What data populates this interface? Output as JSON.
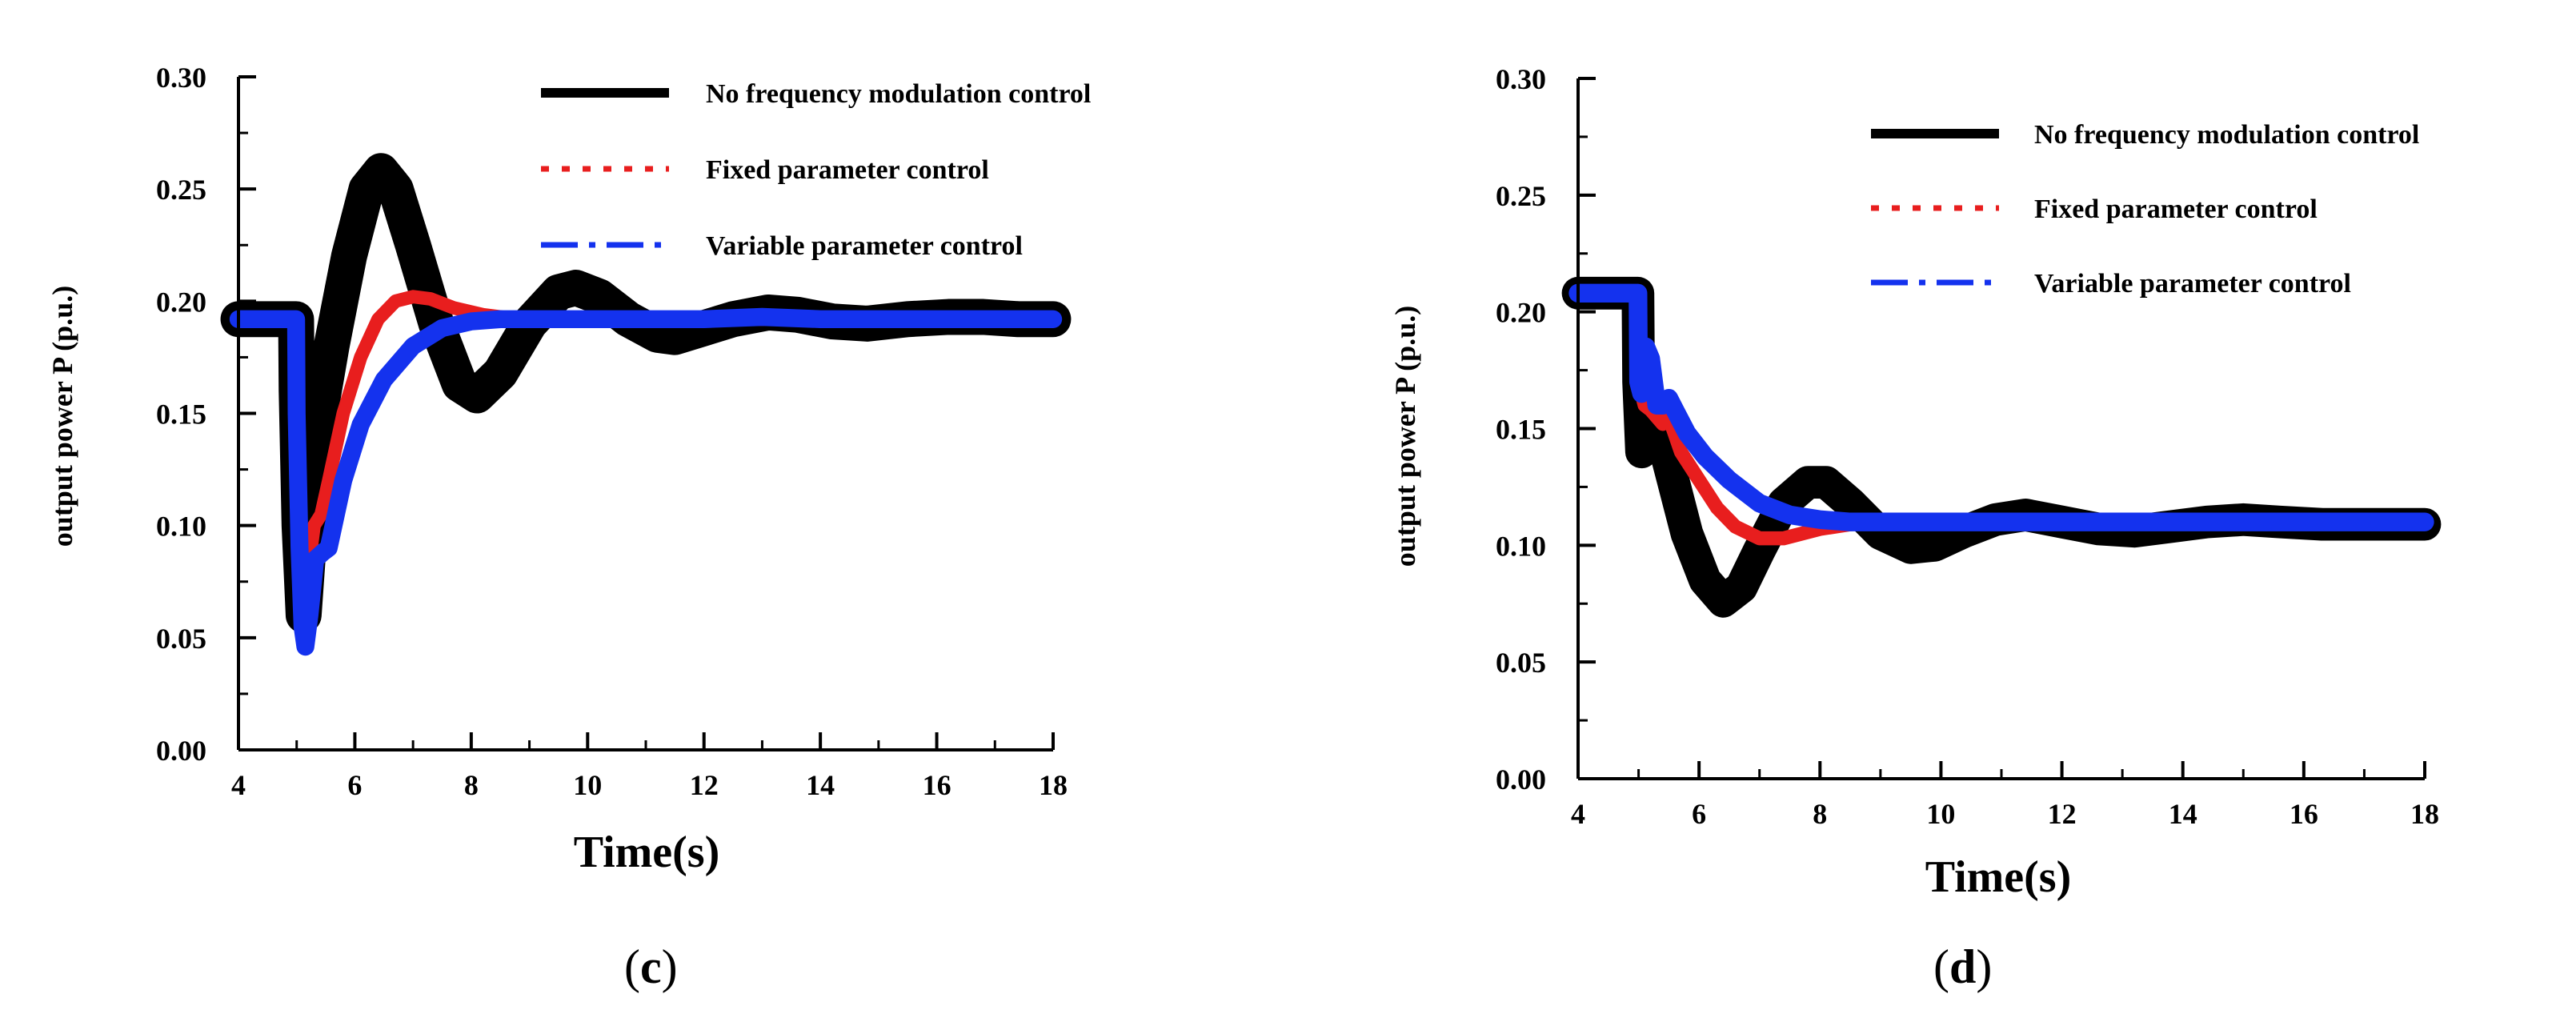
{
  "chart_data": [
    {
      "panel": "c",
      "type": "line",
      "caption_open": "(",
      "caption_letter": "c",
      "caption_close": ")",
      "xlabel": "Time(s)",
      "ylabel": "output power  P (p.u.)",
      "xlim": [
        4,
        18
      ],
      "ylim": [
        0,
        0.3
      ],
      "x_ticks": [
        "4",
        "6",
        "8",
        "10",
        "12",
        "14",
        "16",
        "18"
      ],
      "y_ticks": [
        "0.00",
        "0.05",
        "0.10",
        "0.15",
        "0.20",
        "0.25",
        "0.30"
      ],
      "legend_position": "top-right",
      "series": [
        {
          "name": "No frequency modulation control",
          "color": "#000000",
          "style": "solid",
          "x": [
            4.0,
            4.99,
            5.0,
            5.05,
            5.12,
            5.2,
            5.3,
            5.4,
            5.6,
            5.9,
            6.2,
            6.45,
            6.7,
            7.0,
            7.4,
            7.8,
            8.1,
            8.5,
            9.0,
            9.5,
            9.8,
            10.2,
            10.7,
            11.2,
            11.5,
            12.0,
            12.5,
            13.1,
            13.6,
            14.2,
            14.8,
            15.5,
            16.2,
            16.8,
            17.4,
            18.0
          ],
          "y": [
            0.192,
            0.192,
            0.16,
            0.1,
            0.06,
            0.09,
            0.13,
            0.15,
            0.18,
            0.22,
            0.25,
            0.258,
            0.25,
            0.225,
            0.19,
            0.163,
            0.158,
            0.168,
            0.19,
            0.204,
            0.206,
            0.202,
            0.192,
            0.185,
            0.184,
            0.188,
            0.192,
            0.195,
            0.194,
            0.191,
            0.19,
            0.192,
            0.193,
            0.193,
            0.192,
            0.192
          ],
          "band": 0.008
        },
        {
          "name": "Fixed parameter control",
          "color": "#e81e1e",
          "style": "dotted",
          "x": [
            4.0,
            4.99,
            5.0,
            5.05,
            5.12,
            5.2,
            5.3,
            5.42,
            5.55,
            5.8,
            6.1,
            6.4,
            6.7,
            7.0,
            7.3,
            7.7,
            8.2,
            8.8,
            9.5,
            10.5,
            12.0,
            14.0,
            16.0,
            18.0
          ],
          "y": [
            0.192,
            0.192,
            0.16,
            0.1,
            0.06,
            0.08,
            0.1,
            0.105,
            0.12,
            0.15,
            0.175,
            0.192,
            0.2,
            0.202,
            0.201,
            0.197,
            0.194,
            0.192,
            0.192,
            0.192,
            0.192,
            0.192,
            0.192,
            0.192
          ],
          "band": 0.003
        },
        {
          "name": "Variable parameter control",
          "color": "#1432ee",
          "style": "dash-dot",
          "x": [
            4.0,
            4.99,
            5.0,
            5.05,
            5.1,
            5.15,
            5.22,
            5.32,
            5.45,
            5.55,
            5.8,
            6.1,
            6.5,
            7.0,
            7.5,
            8.0,
            8.5,
            9.0,
            10.0,
            11.0,
            12.0,
            13.0,
            14.0,
            16.0,
            18.0
          ],
          "y": [
            0.192,
            0.192,
            0.15,
            0.09,
            0.055,
            0.046,
            0.06,
            0.085,
            0.088,
            0.09,
            0.12,
            0.145,
            0.165,
            0.18,
            0.188,
            0.191,
            0.192,
            0.192,
            0.192,
            0.192,
            0.192,
            0.193,
            0.192,
            0.192,
            0.192
          ],
          "band": 0.004
        }
      ]
    },
    {
      "panel": "d",
      "type": "line",
      "caption_open": "(",
      "caption_letter": "d",
      "caption_close": ")",
      "xlabel": "Time(s)",
      "ylabel": "output power  P (p.u.)",
      "xlim": [
        4,
        18
      ],
      "ylim": [
        0,
        0.3
      ],
      "x_ticks": [
        "4",
        "6",
        "8",
        "10",
        "12",
        "14",
        "16",
        "18"
      ],
      "y_ticks": [
        "0.00",
        "0.05",
        "0.10",
        "0.15",
        "0.20",
        "0.25",
        "0.30"
      ],
      "legend_position": "top-right",
      "series": [
        {
          "name": "No frequency modulation control",
          "color": "#000000",
          "style": "solid",
          "x": [
            4.0,
            4.99,
            5.0,
            5.05,
            5.1,
            5.2,
            5.35,
            5.5,
            5.8,
            6.1,
            6.4,
            6.7,
            7.0,
            7.4,
            7.8,
            8.1,
            8.5,
            9.0,
            9.5,
            9.9,
            10.4,
            10.9,
            11.4,
            12.0,
            12.6,
            13.2,
            13.8,
            14.4,
            15.0,
            15.6,
            16.3,
            17.0,
            18.0
          ],
          "y": [
            0.208,
            0.208,
            0.17,
            0.14,
            0.145,
            0.155,
            0.15,
            0.135,
            0.105,
            0.085,
            0.076,
            0.082,
            0.098,
            0.118,
            0.127,
            0.127,
            0.118,
            0.105,
            0.099,
            0.1,
            0.106,
            0.111,
            0.113,
            0.11,
            0.107,
            0.106,
            0.108,
            0.11,
            0.111,
            0.11,
            0.109,
            0.109,
            0.109
          ],
          "band": 0.007
        },
        {
          "name": "Fixed parameter control",
          "color": "#e81e1e",
          "style": "dotted",
          "x": [
            4.0,
            4.99,
            5.0,
            5.05,
            5.1,
            5.2,
            5.3,
            5.4,
            5.5,
            5.7,
            6.0,
            6.3,
            6.6,
            7.0,
            7.4,
            8.0,
            8.5,
            9.0,
            10.0,
            12.0,
            14.0,
            16.0,
            18.0
          ],
          "y": [
            0.208,
            0.208,
            0.18,
            0.165,
            0.16,
            0.158,
            0.155,
            0.152,
            0.155,
            0.14,
            0.128,
            0.116,
            0.108,
            0.103,
            0.103,
            0.107,
            0.109,
            0.11,
            0.11,
            0.11,
            0.11,
            0.11,
            0.11
          ],
          "band": 0.003
        },
        {
          "name": "Variable parameter control",
          "color": "#1432ee",
          "style": "dash-dot",
          "x": [
            4.0,
            4.99,
            5.0,
            5.05,
            5.12,
            5.2,
            5.3,
            5.4,
            5.5,
            5.6,
            5.8,
            6.1,
            6.5,
            7.0,
            7.5,
            8.0,
            8.5,
            9.0,
            10.0,
            12.0,
            14.0,
            16.0,
            18.0
          ],
          "y": [
            0.208,
            0.208,
            0.17,
            0.165,
            0.185,
            0.18,
            0.16,
            0.16,
            0.163,
            0.158,
            0.148,
            0.138,
            0.128,
            0.118,
            0.113,
            0.111,
            0.11,
            0.11,
            0.11,
            0.11,
            0.11,
            0.11,
            0.11
          ],
          "band": 0.004
        }
      ]
    }
  ]
}
